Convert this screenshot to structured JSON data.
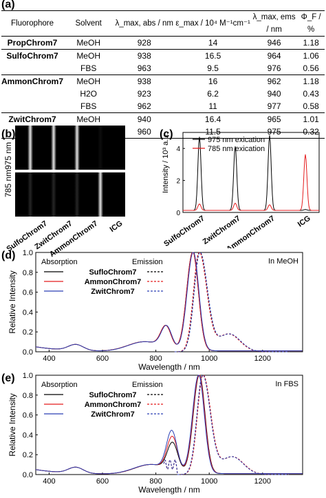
{
  "panels": {
    "a": "(a)",
    "b": "(b)",
    "c": "(c)",
    "d": "(d)",
    "e": "(e)"
  },
  "table": {
    "headers": [
      "Fluorophore",
      "Solvent",
      "λ_max, abs / nm",
      "ε_max / 10⁴ M⁻¹cm⁻¹",
      "λ_max, ems / nm",
      "Φ_F / %"
    ],
    "rows": [
      {
        "dye": "PropChrom7",
        "solvent": "MeOH",
        "abs": "928",
        "eps": "14",
        "ems": "946",
        "phi": "1.18"
      },
      {
        "dye": "SulfoChrom7",
        "solvent": "MeOH",
        "abs": "938",
        "eps": "16.5",
        "ems": "964",
        "phi": "1.06"
      },
      {
        "dye": "",
        "solvent": "FBS",
        "abs": "963",
        "eps": "9.5",
        "ems": "976",
        "phi": "0.56"
      },
      {
        "dye": "AmmonChrom7",
        "solvent": "MeOH",
        "abs": "938",
        "eps": "16",
        "ems": "962",
        "phi": "1.18"
      },
      {
        "dye": "",
        "solvent": "H2O",
        "abs": "923",
        "eps": "6.2",
        "ems": "940",
        "phi": "0.43"
      },
      {
        "dye": "",
        "solvent": "FBS",
        "abs": "962",
        "eps": "11",
        "ems": "977",
        "phi": "0.58"
      },
      {
        "dye": "ZwitChrom7",
        "solvent": "MeOH",
        "abs": "940",
        "eps": "16.4",
        "ems": "965",
        "phi": "1.01"
      },
      {
        "dye": "",
        "solvent": "FBS",
        "abs": "960",
        "eps": "11.5",
        "ems": "975",
        "phi": "0.32"
      }
    ]
  },
  "gel": {
    "row_labels": [
      "975 nm",
      "785 nm"
    ],
    "lanes": [
      "SulfoChrom7",
      "ZwitChrom7",
      "AmmonChrom7",
      "ICG"
    ],
    "brightness_975": [
      0.9,
      0.9,
      0.9,
      0.05
    ],
    "brightness_785": [
      0.15,
      0.15,
      0.15,
      0.9
    ]
  },
  "chart_data": [
    {
      "type": "line",
      "panel": "c",
      "ylabel": "Intensity / 10³ a.u.",
      "ylim": [
        0,
        5
      ],
      "yticks": [
        "0",
        "2",
        "4"
      ],
      "categories": [
        "SulfoChrom7",
        "ZwitChrom7",
        "AmmonChrom7",
        "ICG"
      ],
      "series": [
        {
          "name": "975 nm exication",
          "color": "#000000",
          "peaks": [
            4.6,
            4.0,
            4.7,
            0.05
          ]
        },
        {
          "name": "785 nm exication",
          "color": "#e41a1c",
          "peaks": [
            0.4,
            0.45,
            0.35,
            3.5
          ]
        }
      ]
    },
    {
      "type": "line",
      "panel": "d",
      "annotation": "In MeOH",
      "xlabel": "Wavelength / nm",
      "ylabel": "Relative Intensity",
      "xlim": [
        350,
        1350
      ],
      "ylim": [
        0,
        1
      ],
      "xticks": [
        "400",
        "600",
        "800",
        "1000",
        "1200"
      ],
      "yticks": [
        "0.0",
        "0.2",
        "0.4",
        "0.6",
        "0.8",
        "1.0"
      ],
      "legend_headers": [
        "Absorption",
        "Emission"
      ],
      "series": [
        {
          "name": "SufloChrom7",
          "color": "#000000",
          "abs_peak": 938,
          "ems_peak": 964
        },
        {
          "name": "AmmonChrom7",
          "color": "#e41a1c",
          "abs_peak": 938,
          "ems_peak": 962
        },
        {
          "name": "ZwitChrom7",
          "color": "#2b3fb5",
          "abs_peak": 940,
          "ems_peak": 965
        }
      ]
    },
    {
      "type": "line",
      "panel": "e",
      "annotation": "In FBS",
      "xlabel": "Wavelength / nm",
      "ylabel": "Relative Intensity",
      "xlim": [
        350,
        1350
      ],
      "ylim": [
        0,
        1
      ],
      "xticks": [
        "400",
        "600",
        "800",
        "1000",
        "1200"
      ],
      "yticks": [
        "0.0",
        "0.2",
        "0.4",
        "0.6",
        "0.8",
        "1.0"
      ],
      "legend_headers": [
        "Absorption",
        "Emission"
      ],
      "series": [
        {
          "name": "SufloChrom7",
          "color": "#000000",
          "abs_peak": 963,
          "ems_peak": 976
        },
        {
          "name": "AmmonChrom7",
          "color": "#e41a1c",
          "abs_peak": 962,
          "ems_peak": 977
        },
        {
          "name": "ZwitChrom7",
          "color": "#2b3fb5",
          "abs_peak": 960,
          "ems_peak": 975
        }
      ]
    }
  ]
}
